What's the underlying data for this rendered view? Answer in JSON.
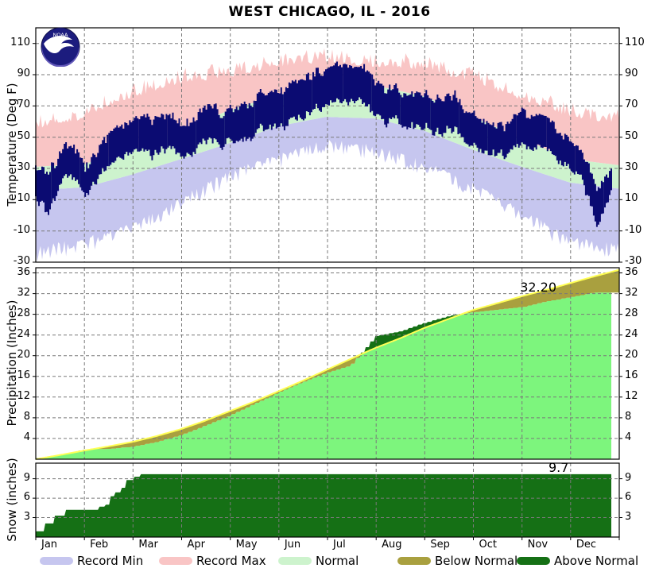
{
  "title": "WEST CHICAGO, IL - 2016",
  "logo": {
    "text": "NOAA"
  },
  "annotations": {
    "precip_total": "32.20",
    "snow_total": "9.7"
  },
  "colors": {
    "record_min": "#c6c6ef",
    "record_max": "#f9c5c5",
    "normal_band": "#cdf3cd",
    "actual_temp_bar": "#0b0b72",
    "precip_actual_fill": "#7df57d",
    "below_normal": "#a9a03f",
    "above_normal": "#157015",
    "normal_cum_line": "#ffff55",
    "grid": "#7a7a7a",
    "logo_dark": "#1c1c7e",
    "logo_light": "#6157b8"
  },
  "chart_data": {
    "type": "area",
    "title": "WEST CHICAGO, IL - 2016",
    "months": [
      "Jan",
      "Feb",
      "Mar",
      "Apr",
      "May",
      "Jun",
      "Jul",
      "Aug",
      "Sep",
      "Oct",
      "Nov",
      "Dec"
    ],
    "legend": [
      {
        "label": "Record Min",
        "color": "#c6c6ef"
      },
      {
        "label": "Record Max",
        "color": "#f9c5c5"
      },
      {
        "label": "Normal",
        "color": "#cdf3cd"
      },
      {
        "label": "Below Normal",
        "color": "#a9a03f"
      },
      {
        "label": "Above Normal",
        "color": "#157015"
      }
    ],
    "legend_position": "bottom",
    "grid": true,
    "temperature": {
      "ylabel": "Temperature (Deg F)",
      "yticks": [
        110,
        90,
        70,
        50,
        30,
        10,
        -10,
        -30
      ],
      "ylim": [
        -30,
        120
      ],
      "month_anchor_days": [
        0,
        31,
        60,
        91,
        121,
        152,
        182,
        213,
        244,
        274,
        305,
        335,
        366
      ],
      "record_high": [
        62,
        68,
        82,
        91,
        95,
        102,
        104,
        102,
        100,
        92,
        80,
        70,
        65
      ],
      "normal_high": [
        31,
        33,
        42,
        55,
        67,
        77,
        84,
        83,
        76,
        63,
        49,
        36,
        32
      ],
      "normal_low": [
        16,
        18,
        26,
        36,
        46,
        57,
        63,
        62,
        54,
        42,
        31,
        21,
        17
      ],
      "record_low": [
        -27,
        -21,
        -12,
        5,
        22,
        32,
        42,
        38,
        28,
        14,
        -3,
        -20,
        -25
      ],
      "actual_anchor_days": [
        0,
        8,
        15,
        31,
        46,
        60,
        75,
        91,
        106,
        121,
        136,
        152,
        167,
        182,
        197,
        213,
        228,
        244,
        259,
        274,
        289,
        305,
        320,
        335,
        342,
        352,
        356,
        361
      ],
      "actual_high": [
        32,
        26,
        38,
        30,
        42,
        52,
        55,
        56,
        62,
        66,
        70,
        80,
        85,
        85,
        88,
        86,
        84,
        83,
        78,
        71,
        64,
        59,
        52,
        40,
        31,
        16,
        24,
        38
      ],
      "actual_low": [
        15,
        4,
        22,
        15,
        26,
        35,
        36,
        39,
        44,
        48,
        51,
        60,
        64,
        66,
        68,
        67,
        66,
        64,
        59,
        53,
        47,
        42,
        36,
        26,
        18,
        -6,
        6,
        27
      ],
      "actual_last_day": 361
    },
    "precipitation": {
      "ylabel": "Precipitation (Inches)",
      "yticks": [
        36,
        32,
        28,
        24,
        20,
        16,
        12,
        8,
        4
      ],
      "ylim": [
        0,
        37
      ],
      "anchor_days": [
        0,
        15,
        31,
        46,
        60,
        75,
        91,
        106,
        121,
        136,
        152,
        167,
        182,
        197,
        213,
        228,
        244,
        259,
        274,
        289,
        305,
        320,
        335,
        350,
        366
      ],
      "actual_cumulative": [
        0.2,
        0.8,
        1.9,
        2.0,
        2.4,
        3.3,
        4.7,
        6.5,
        8.4,
        10.6,
        12.9,
        14.9,
        16.7,
        18.1,
        23.8,
        24.7,
        26.4,
        27.7,
        28.4,
        28.9,
        29.4,
        30.5,
        31.3,
        32.2,
        32.2
      ],
      "normal_cumulative": [
        0.0,
        0.8,
        1.7,
        2.5,
        3.3,
        4.4,
        5.8,
        7.4,
        9.2,
        11.0,
        13.1,
        15.1,
        17.2,
        19.3,
        21.5,
        23.3,
        25.4,
        27.1,
        28.8,
        30.1,
        31.5,
        32.7,
        34.0,
        35.3,
        36.6
      ],
      "year_total": 32.2,
      "normal_year_total": 36.6,
      "actual_last_day": 361
    },
    "snow": {
      "ylabel": "Snow (inches)",
      "yticks": [
        9,
        6,
        3
      ],
      "ylim": [
        0,
        11.4
      ],
      "steps": [
        [
          0,
          0.9
        ],
        [
          6,
          2.1
        ],
        [
          12,
          3.3
        ],
        [
          19,
          4.2
        ],
        [
          40,
          4.7
        ],
        [
          44,
          5.0
        ],
        [
          47,
          6.3
        ],
        [
          50,
          6.9
        ],
        [
          54,
          7.6
        ],
        [
          57,
          8.8
        ],
        [
          62,
          9.3
        ],
        [
          66,
          9.7
        ],
        [
          361,
          9.7
        ]
      ],
      "year_total": 9.7,
      "actual_last_day": 361
    }
  }
}
